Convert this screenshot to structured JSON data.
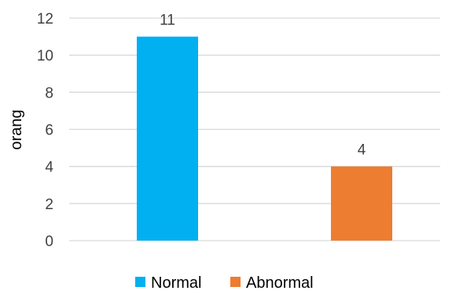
{
  "chart_data": {
    "type": "bar",
    "title": "",
    "xlabel": "",
    "ylabel": "orang",
    "categories": [
      "Normal",
      "Abnormal"
    ],
    "values": [
      11,
      4
    ],
    "colors": [
      "#00b0f0",
      "#ed7d31"
    ],
    "data_labels": [
      "11",
      "4"
    ],
    "ylim": [
      0,
      12
    ],
    "yticks": [
      0,
      2,
      4,
      6,
      8,
      10,
      12
    ],
    "grid": true,
    "legend_placement": "bottom",
    "legend": [
      {
        "label": "Normal",
        "color": "#00b0f0"
      },
      {
        "label": "Abnormal",
        "color": "#ed7d31"
      }
    ]
  }
}
